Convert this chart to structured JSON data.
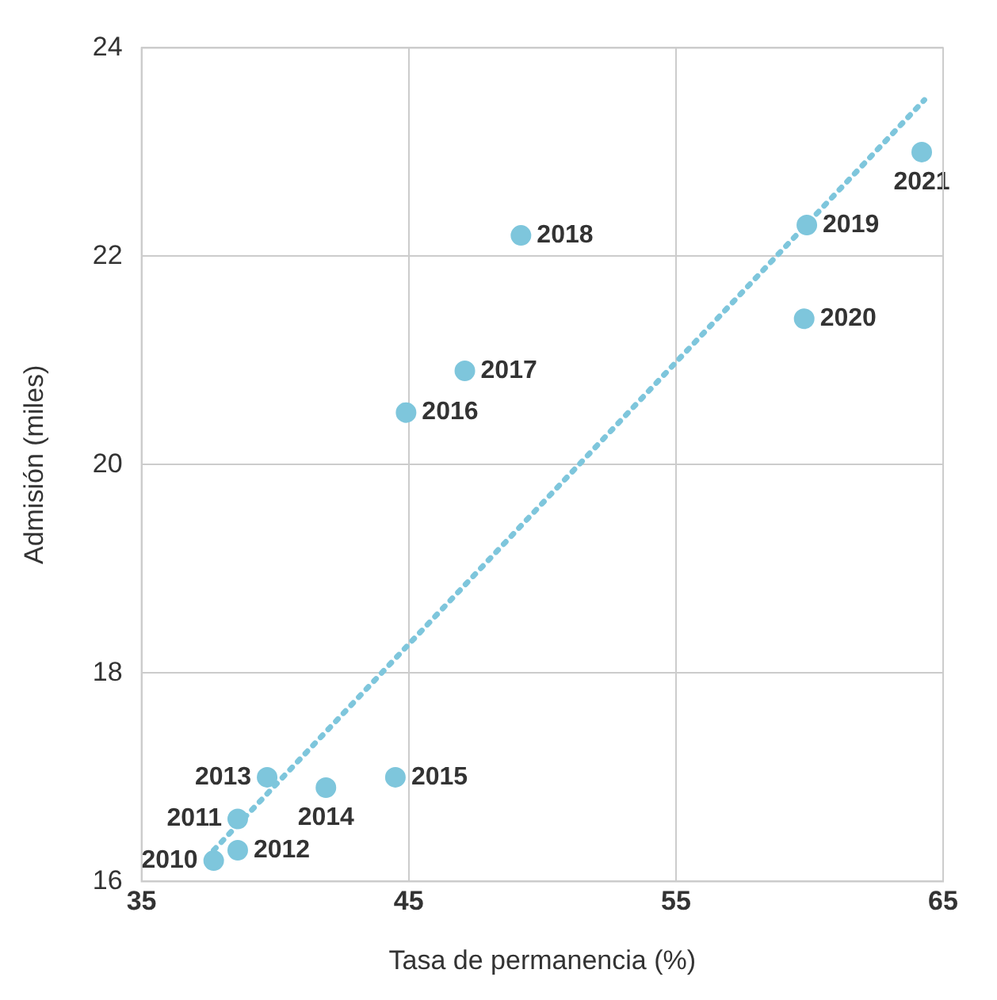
{
  "chart_data": {
    "type": "scatter",
    "xlabel": "Tasa de permanencia (%)",
    "ylabel": "Admisión (miles)",
    "series": [
      {
        "color": "#7ec6dc",
        "x": [
          37.7,
          38.6,
          38.6,
          39.7,
          41.9,
          44.5,
          44.9,
          47.1,
          49.2,
          59.9,
          59.8,
          64.2
        ],
        "values": [
          16.2,
          16.6,
          16.3,
          17.0,
          16.9,
          17.0,
          20.5,
          20.9,
          22.2,
          22.3,
          21.4,
          23.0
        ]
      },
      {
        "type": "line",
        "color": "#7ec6dc",
        "line_style": "dotted",
        "marker": "none",
        "x": [
          37.7,
          64.3
        ],
        "values": [
          16.3,
          23.5
        ]
      }
    ],
    "annotations": [
      {
        "text": "2010",
        "x": 37.7,
        "y": 16.2
      },
      {
        "text": "2011",
        "x": 38.6,
        "y": 16.6
      },
      {
        "text": "2012",
        "x": 38.6,
        "y": 16.3
      },
      {
        "text": "2013",
        "x": 39.7,
        "y": 17.0
      },
      {
        "text": "2014",
        "x": 41.9,
        "y": 16.9
      },
      {
        "text": "2015",
        "x": 44.5,
        "y": 17.0
      },
      {
        "text": "2016",
        "x": 44.9,
        "y": 20.5
      },
      {
        "text": "2017",
        "x": 47.1,
        "y": 20.9
      },
      {
        "text": "2018",
        "x": 49.2,
        "y": 22.2
      },
      {
        "text": "2019",
        "x": 59.9,
        "y": 22.3
      },
      {
        "text": "2020",
        "x": 59.8,
        "y": 21.4
      },
      {
        "text": "2021",
        "x": 64.2,
        "y": 23.0
      }
    ],
    "xlim": [
      35,
      65
    ],
    "xticks": [
      35,
      45,
      55,
      65
    ],
    "ylim": [
      16,
      24
    ],
    "yticks": [
      16,
      18,
      20,
      22,
      24
    ],
    "grid": true,
    "legend": false,
    "marker": "circle"
  }
}
